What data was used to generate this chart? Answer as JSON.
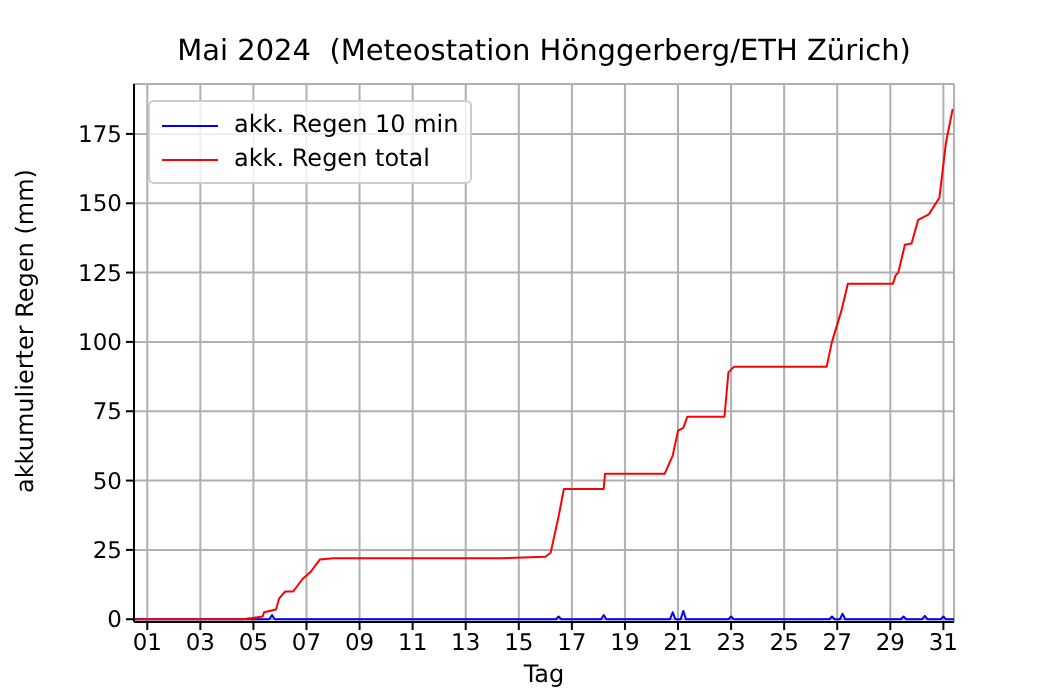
{
  "chart_data": {
    "type": "line",
    "title": "Mai 2024  (Meteostation Hönggerberg/ETH Zürich)",
    "xlabel": "Tag",
    "ylabel": "akkumulierter Regen (mm)",
    "xlim": [
      0.5,
      31.4
    ],
    "ylim": [
      -1,
      193
    ],
    "xticks": [
      {
        "value": 1,
        "label": "01"
      },
      {
        "value": 3,
        "label": "03"
      },
      {
        "value": 5,
        "label": "05"
      },
      {
        "value": 7,
        "label": "07"
      },
      {
        "value": 9,
        "label": "09"
      },
      {
        "value": 11,
        "label": "11"
      },
      {
        "value": 13,
        "label": "13"
      },
      {
        "value": 15,
        "label": "15"
      },
      {
        "value": 17,
        "label": "17"
      },
      {
        "value": 19,
        "label": "19"
      },
      {
        "value": 21,
        "label": "21"
      },
      {
        "value": 23,
        "label": "23"
      },
      {
        "value": 25,
        "label": "25"
      },
      {
        "value": 27,
        "label": "27"
      },
      {
        "value": 29,
        "label": "29"
      },
      {
        "value": 31,
        "label": "31"
      }
    ],
    "yticks": [
      0,
      25,
      50,
      75,
      100,
      125,
      150,
      175
    ],
    "grid": true,
    "legend": "top left",
    "marker": "none",
    "line_style": "solid",
    "series": [
      {
        "name": "akk. Regen 10 min",
        "color": "#0000ff",
        "x": [
          0.5,
          5.6,
          5.7,
          5.8,
          16.4,
          16.5,
          16.6,
          18.1,
          18.2,
          18.3,
          20.7,
          20.8,
          20.9,
          21.1,
          21.2,
          21.3,
          22.9,
          23.0,
          23.1,
          26.7,
          26.8,
          26.9,
          27.1,
          27.2,
          27.3,
          29.4,
          29.5,
          29.6,
          30.2,
          30.3,
          30.4,
          30.9,
          31.0,
          31.1,
          31.4
        ],
        "values": [
          0,
          0,
          1.5,
          0,
          0,
          1,
          0,
          0,
          1.5,
          0,
          0,
          2.5,
          0,
          0,
          3,
          0,
          0,
          1,
          0,
          0,
          1,
          0,
          0,
          2,
          0,
          0,
          1,
          0,
          0,
          1.2,
          0,
          0,
          1,
          0,
          0
        ]
      },
      {
        "name": "akk. Regen total",
        "color": "#ff0000",
        "x": [
          0.5,
          4.6,
          5.35,
          5.4,
          5.85,
          5.97,
          6.2,
          6.5,
          6.85,
          7.15,
          7.5,
          8.0,
          14.3,
          16.0,
          16.2,
          16.5,
          16.7,
          18.2,
          18.25,
          20.5,
          20.8,
          21.0,
          21.2,
          21.35,
          22.75,
          22.9,
          23.1,
          26.6,
          26.8,
          27.15,
          27.4,
          29.1,
          29.2,
          29.3,
          29.55,
          29.8,
          30.05,
          30.45,
          30.85,
          31.1,
          31.35
        ],
        "values": [
          0,
          0,
          1,
          2.5,
          3.5,
          7.5,
          10,
          10,
          14.5,
          17,
          21.5,
          22,
          22,
          22.5,
          24,
          37,
          47,
          47,
          52.5,
          52.5,
          59,
          68,
          69,
          73,
          73,
          89,
          91,
          91,
          100,
          111,
          121,
          121,
          124,
          125,
          135,
          135.5,
          144,
          146,
          152,
          172,
          184
        ]
      }
    ]
  }
}
